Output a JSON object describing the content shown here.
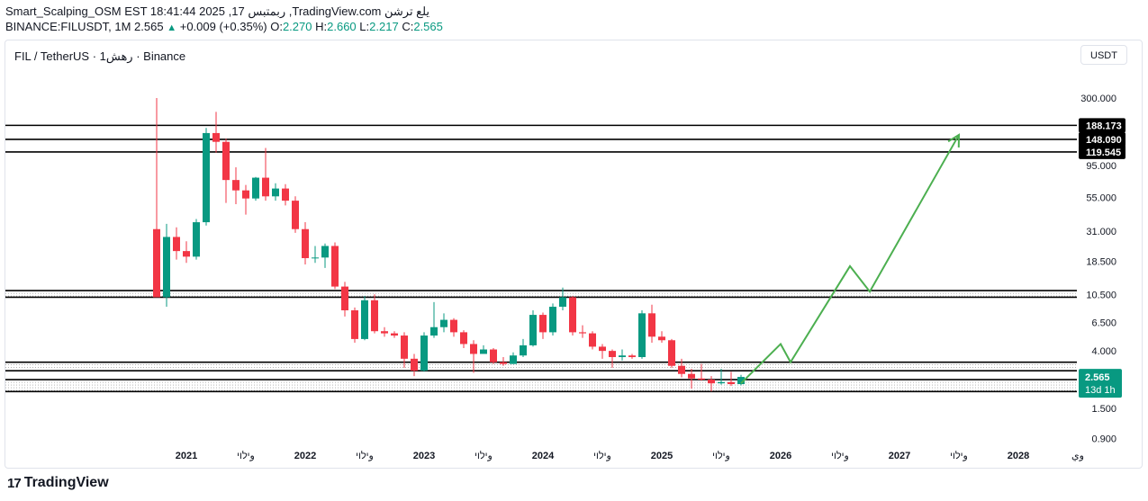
{
  "header": {
    "line1": "Smart_Scalping_OSM EST 18:41:44 2025 ,17 ربمتبس ,TradingView.com يلع ترشن",
    "symbol": "BINANCE:FILUSDT, 1M",
    "price": "2.565",
    "arrow": "▲",
    "change": "+0.009 (+0.35%)",
    "o_label": "O:",
    "o": "2.270",
    "h_label": "H:",
    "h": "2.660",
    "l_label": "L:",
    "l": "2.217",
    "c_label": "C:",
    "c": "2.565"
  },
  "legend": "FIL / TetherUS · 1رهش · Binance",
  "currency_button": "USDT",
  "brand": {
    "logo": "17",
    "name": "TradingView"
  },
  "colors": {
    "up": "#089981",
    "down": "#f23645",
    "projection": "#4caf50",
    "level": "#000000"
  },
  "chart_data": {
    "type": "candlestick",
    "y_scale": "log",
    "ylim": [
      0.7,
      420
    ],
    "y_ticks": [
      "300.000",
      "95.000",
      "55.000",
      "31.000",
      "18.500",
      "10.500",
      "6.500",
      "4.000",
      "1.500",
      "0.900"
    ],
    "x_tick_labels": [
      {
        "label": "2021",
        "date": "2021-01"
      },
      {
        "label": "وילוי",
        "date": "2021-07"
      },
      {
        "label": "2022",
        "date": "2022-01"
      },
      {
        "label": "وילוי",
        "date": "2022-07"
      },
      {
        "label": "2023",
        "date": "2023-01"
      },
      {
        "label": "وילוי",
        "date": "2023-07"
      },
      {
        "label": "2024",
        "date": "2024-01"
      },
      {
        "label": "وילוי",
        "date": "2024-07"
      },
      {
        "label": "2025",
        "date": "2025-01"
      },
      {
        "label": "وילוי",
        "date": "2025-07"
      },
      {
        "label": "2026",
        "date": "2026-01"
      },
      {
        "label": "وילוי",
        "date": "2026-07"
      },
      {
        "label": "2027",
        "date": "2027-01"
      },
      {
        "label": "وילוי",
        "date": "2027-07"
      },
      {
        "label": "2028",
        "date": "2028-01"
      },
      {
        "label": "وي",
        "date": "2028-07"
      }
    ],
    "candles": [
      [
        "2020-10",
        32.0,
        300.0,
        10.0,
        10.0
      ],
      [
        "2020-11",
        10.0,
        35.0,
        8.5,
        28.0
      ],
      [
        "2020-12",
        28.0,
        33.0,
        19.0,
        22.0
      ],
      [
        "2021-01",
        22.0,
        26.0,
        18.0,
        20.0
      ],
      [
        "2021-02",
        20.0,
        38.0,
        19.0,
        36.0
      ],
      [
        "2021-03",
        36.0,
        180.0,
        34.0,
        165.0
      ],
      [
        "2021-04",
        165.0,
        237.0,
        118.0,
        142.0
      ],
      [
        "2021-05",
        142.0,
        150.0,
        50.0,
        74.0
      ],
      [
        "2021-06",
        74.0,
        92.0,
        49.0,
        62.0
      ],
      [
        "2021-07",
        62.0,
        68.0,
        41.0,
        54.0
      ],
      [
        "2021-08",
        54.0,
        78.0,
        52.0,
        77.0
      ],
      [
        "2021-09",
        77.0,
        128.0,
        52.0,
        56.0
      ],
      [
        "2021-10",
        56.0,
        70.0,
        52.0,
        64.0
      ],
      [
        "2021-11",
        64.0,
        69.0,
        48.0,
        52.0
      ],
      [
        "2021-12",
        52.0,
        56.0,
        30.0,
        32.0
      ],
      [
        "2022-01",
        32.0,
        36.0,
        17.5,
        19.5
      ],
      [
        "2022-02",
        19.5,
        24.0,
        18.0,
        19.7
      ],
      [
        "2022-03",
        19.7,
        25.0,
        16.5,
        24.0
      ],
      [
        "2022-04",
        24.0,
        25.5,
        11.5,
        12.0
      ],
      [
        "2022-05",
        12.0,
        13.0,
        7.2,
        8.0
      ],
      [
        "2022-06",
        8.0,
        8.4,
        4.6,
        4.9
      ],
      [
        "2022-07",
        4.9,
        10.2,
        4.8,
        9.5
      ],
      [
        "2022-08",
        9.5,
        10.5,
        5.4,
        5.6
      ],
      [
        "2022-09",
        5.6,
        6.0,
        5.1,
        5.4
      ],
      [
        "2022-10",
        5.4,
        5.6,
        5.0,
        5.2
      ],
      [
        "2022-11",
        5.2,
        5.5,
        3.0,
        3.5
      ],
      [
        "2022-12",
        3.5,
        3.8,
        2.6,
        2.85
      ],
      [
        "2023-01",
        2.85,
        5.5,
        2.8,
        5.2
      ],
      [
        "2023-02",
        5.2,
        9.2,
        5.0,
        6.0
      ],
      [
        "2023-03",
        6.0,
        7.6,
        5.5,
        6.8
      ],
      [
        "2023-04",
        6.8,
        7.0,
        5.1,
        5.5
      ],
      [
        "2023-05",
        5.5,
        5.7,
        4.2,
        4.5
      ],
      [
        "2023-06",
        4.5,
        4.8,
        2.75,
        3.8
      ],
      [
        "2023-07",
        3.8,
        4.4,
        3.9,
        4.1
      ],
      [
        "2023-08",
        4.1,
        4.2,
        3.2,
        3.3
      ],
      [
        "2023-09",
        3.3,
        3.6,
        3.1,
        3.2
      ],
      [
        "2023-10",
        3.2,
        3.9,
        3.2,
        3.7
      ],
      [
        "2023-11",
        3.7,
        4.9,
        3.6,
        4.4
      ],
      [
        "2023-12",
        4.4,
        8.0,
        4.3,
        7.4
      ],
      [
        "2024-01",
        7.4,
        7.7,
        4.9,
        5.5
      ],
      [
        "2024-02",
        5.5,
        9.0,
        5.2,
        8.5
      ],
      [
        "2024-03",
        8.5,
        11.8,
        8.0,
        10.0
      ],
      [
        "2024-04",
        10.0,
        10.2,
        5.2,
        5.5
      ],
      [
        "2024-05",
        5.5,
        6.2,
        5.0,
        5.4
      ],
      [
        "2024-06",
        5.4,
        5.6,
        4.1,
        4.3
      ],
      [
        "2024-07",
        4.3,
        4.5,
        3.5,
        4.0
      ],
      [
        "2024-08",
        4.0,
        4.1,
        3.0,
        3.6
      ],
      [
        "2024-09",
        3.6,
        4.1,
        3.4,
        3.7
      ],
      [
        "2024-10",
        3.7,
        3.8,
        3.5,
        3.6
      ],
      [
        "2024-11",
        3.6,
        8.0,
        3.5,
        7.6
      ],
      [
        "2024-12",
        7.6,
        8.8,
        4.6,
        5.1
      ],
      [
        "2025-01",
        5.1,
        5.6,
        4.6,
        4.8
      ],
      [
        "2025-02",
        4.8,
        4.9,
        3.0,
        3.1
      ],
      [
        "2025-03",
        3.1,
        3.5,
        2.55,
        2.7
      ],
      [
        "2025-04",
        2.7,
        2.95,
        2.1,
        2.5
      ],
      [
        "2025-05",
        2.5,
        3.2,
        2.4,
        2.45
      ],
      [
        "2025-06",
        2.45,
        2.6,
        2.0,
        2.3
      ],
      [
        "2025-07",
        2.3,
        2.95,
        2.25,
        2.35
      ],
      [
        "2025-08",
        2.35,
        2.8,
        2.2,
        2.27
      ],
      [
        "2025-09",
        2.27,
        2.66,
        2.217,
        2.565
      ]
    ],
    "horizontal_levels": [
      {
        "value": 188.173,
        "label": "188.173"
      },
      {
        "value": 148.09,
        "label": "148.090"
      },
      {
        "value": 119.545,
        "label": "119.545"
      },
      {
        "value": 11.2
      },
      {
        "value": 10.0
      },
      {
        "value": 3.3
      },
      {
        "value": 2.85
      },
      {
        "value": 2.45
      },
      {
        "value": 2.0
      }
    ],
    "projection_path": [
      [
        "2025-09",
        2.3
      ],
      [
        "2026-01",
        4.5
      ],
      [
        "2026-02",
        3.3
      ],
      [
        "2026-08",
        17.0
      ],
      [
        "2026-10",
        11.0
      ],
      [
        "2027-07",
        160.0
      ]
    ],
    "last_price": {
      "value": 2.565,
      "label": "2.565",
      "countdown": "13d 1h"
    }
  }
}
